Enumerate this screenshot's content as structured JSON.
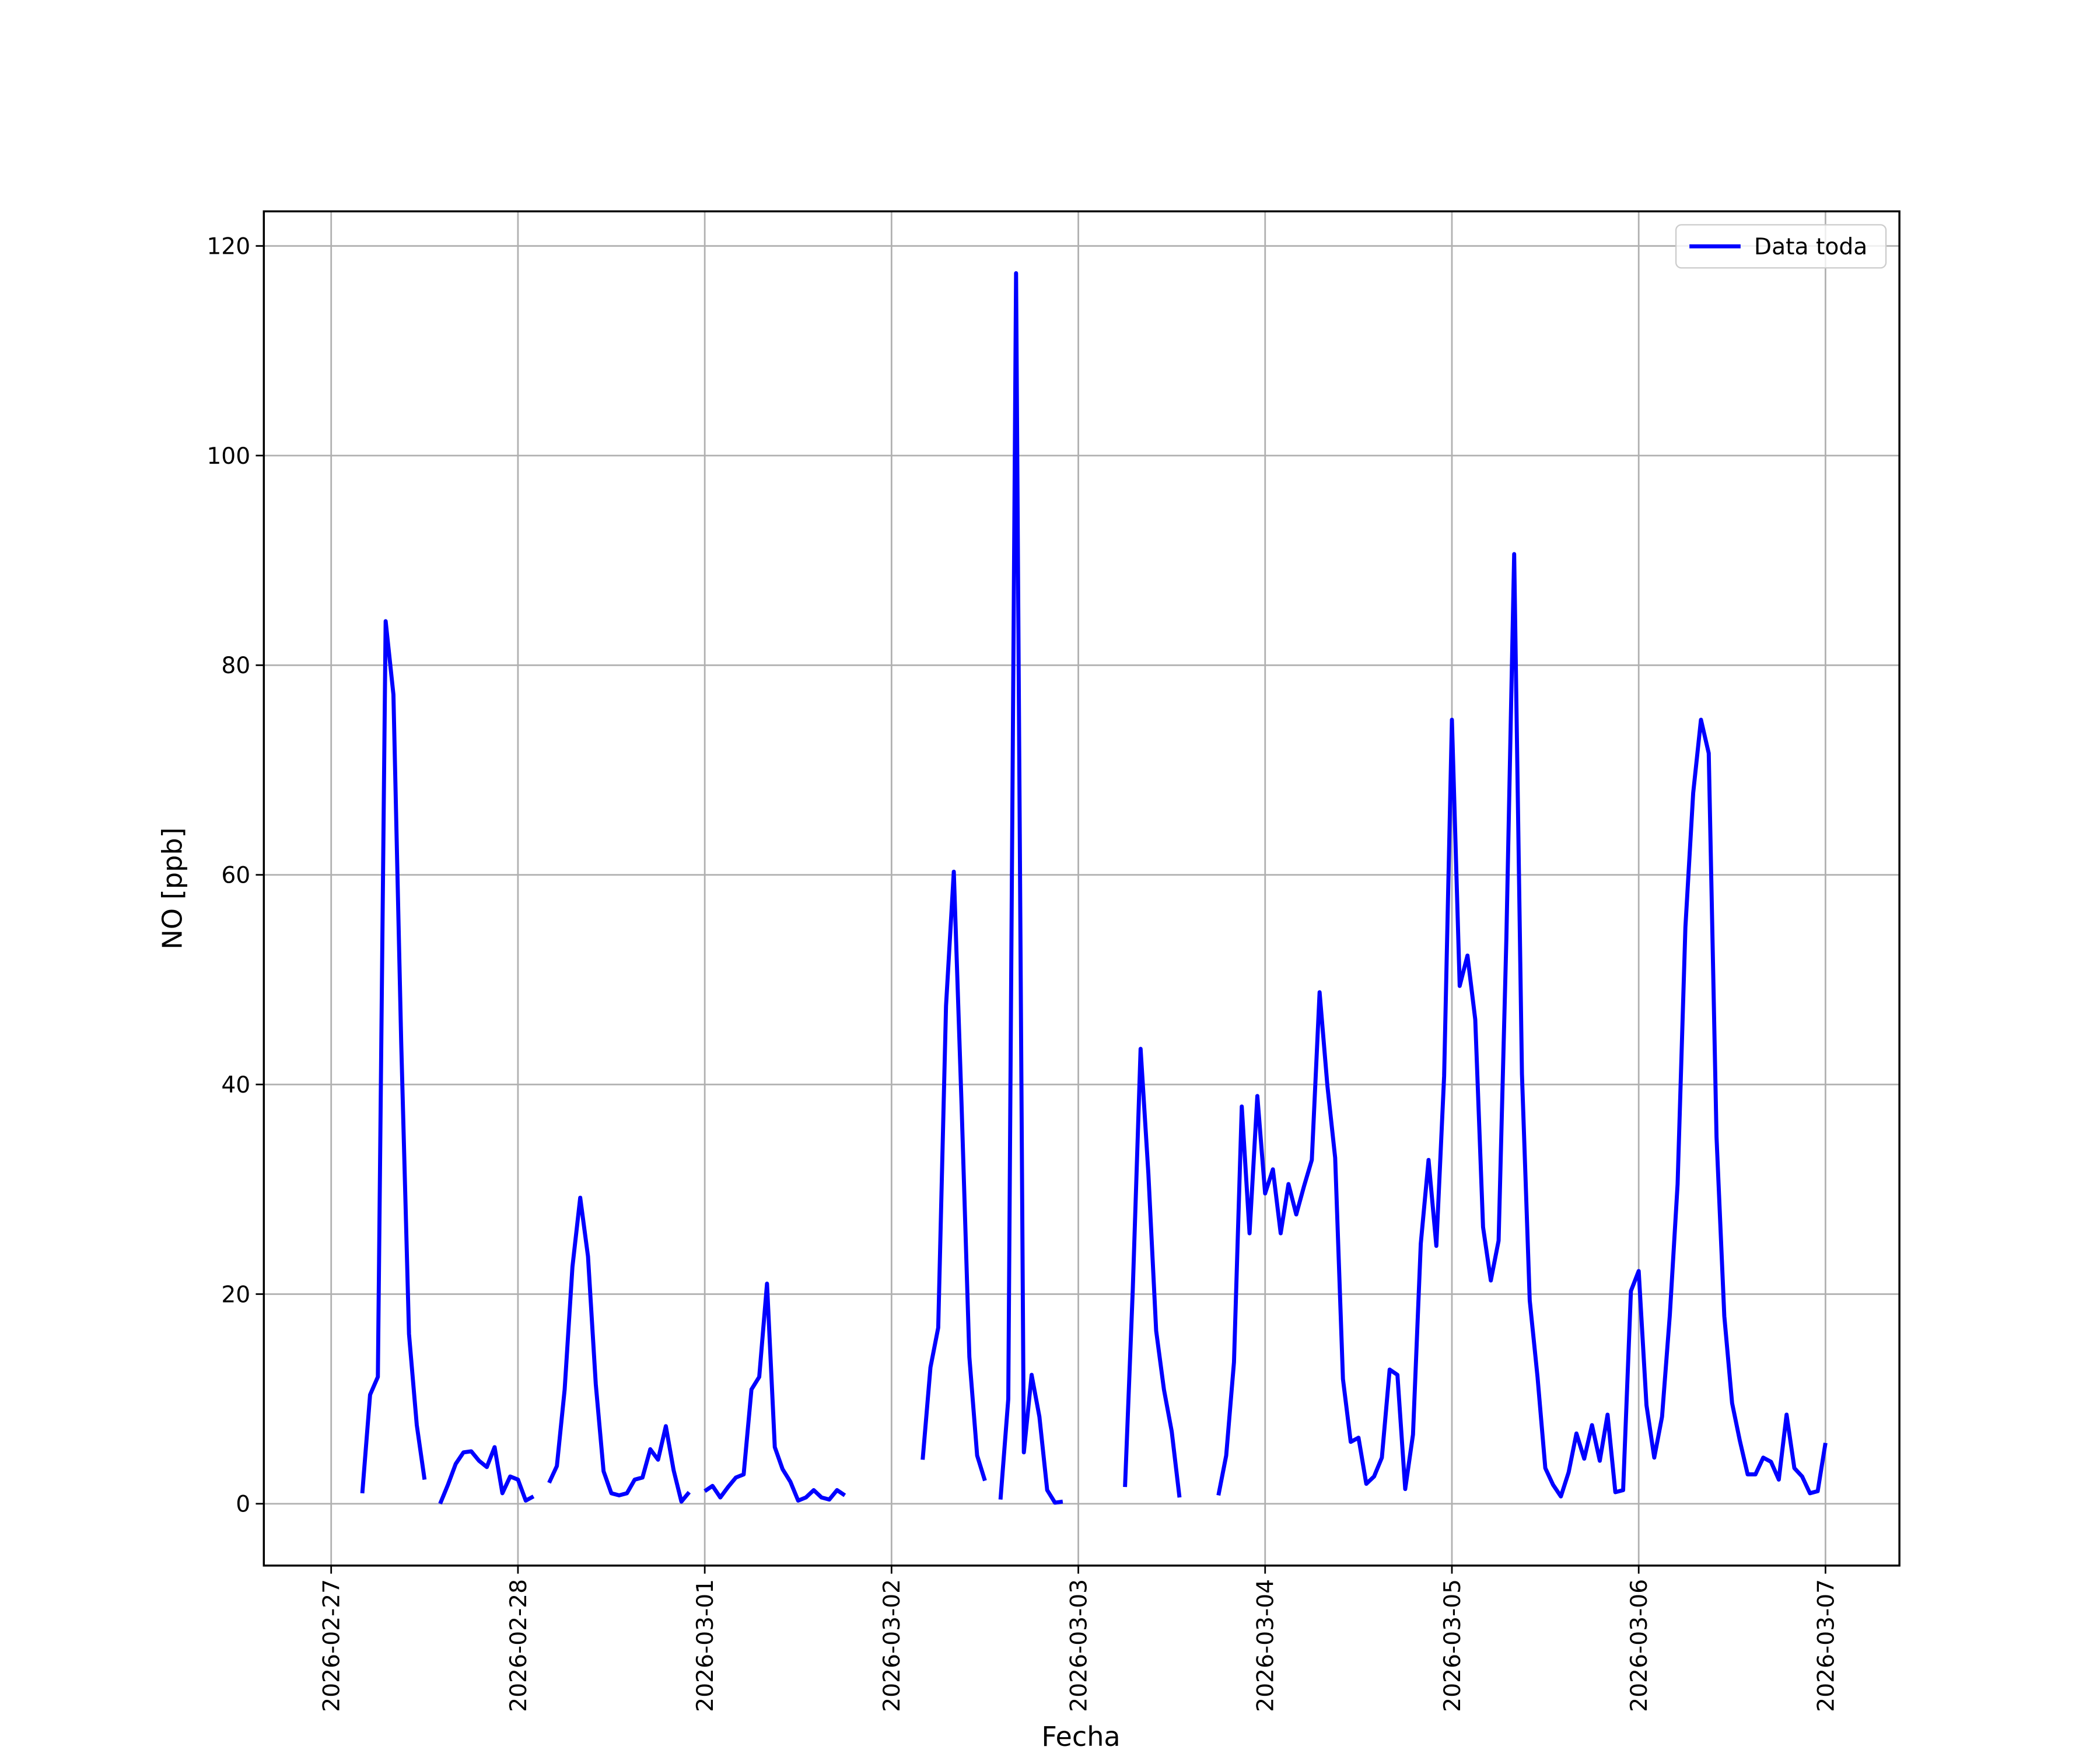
{
  "chart_data": {
    "type": "line",
    "xlabel": "Fecha",
    "ylabel": "NO [ppb]",
    "x": [
      "2026-02-27 04:00",
      "2026-02-27 05:00",
      "2026-02-27 06:00",
      "2026-02-27 07:00",
      "2026-02-27 08:00",
      "2026-02-27 09:00",
      "2026-02-27 10:00",
      "2026-02-27 11:00",
      "2026-02-27 12:00",
      "2026-02-27 13:00",
      "2026-02-27 14:00",
      "2026-02-27 15:00",
      "2026-02-27 16:00",
      "2026-02-27 17:00",
      "2026-02-27 18:00",
      "2026-02-27 19:00",
      "2026-02-27 20:00",
      "2026-02-27 21:00",
      "2026-02-27 22:00",
      "2026-02-27 23:00",
      "2026-02-28 00:00",
      "2026-02-28 01:00",
      "2026-02-28 02:00",
      "2026-02-28 03:00",
      "2026-02-28 04:00",
      "2026-02-28 05:00",
      "2026-02-28 06:00",
      "2026-02-28 07:00",
      "2026-02-28 08:00",
      "2026-02-28 09:00",
      "2026-02-28 10:00",
      "2026-02-28 11:00",
      "2026-02-28 12:00",
      "2026-02-28 13:00",
      "2026-02-28 14:00",
      "2026-02-28 15:00",
      "2026-02-28 16:00",
      "2026-02-28 17:00",
      "2026-02-28 18:00",
      "2026-02-28 19:00",
      "2026-02-28 20:00",
      "2026-02-28 21:00",
      "2026-02-28 22:00",
      "2026-02-28 23:00",
      "2026-03-01 00:00",
      "2026-03-01 01:00",
      "2026-03-01 02:00",
      "2026-03-01 03:00",
      "2026-03-01 04:00",
      "2026-03-01 05:00",
      "2026-03-01 06:00",
      "2026-03-01 07:00",
      "2026-03-01 08:00",
      "2026-03-01 09:00",
      "2026-03-01 10:00",
      "2026-03-01 11:00",
      "2026-03-01 12:00",
      "2026-03-01 13:00",
      "2026-03-01 14:00",
      "2026-03-01 15:00",
      "2026-03-01 16:00",
      "2026-03-01 17:00",
      "2026-03-01 18:00",
      "2026-03-01 19:00",
      "2026-03-02 04:00",
      "2026-03-02 05:00",
      "2026-03-02 06:00",
      "2026-03-02 07:00",
      "2026-03-02 08:00",
      "2026-03-02 09:00",
      "2026-03-02 10:00",
      "2026-03-02 11:00",
      "2026-03-02 12:00",
      "2026-03-02 13:00",
      "2026-03-02 14:00",
      "2026-03-02 15:00",
      "2026-03-02 16:00",
      "2026-03-02 17:00",
      "2026-03-02 18:00",
      "2026-03-02 19:00",
      "2026-03-02 20:00",
      "2026-03-02 21:00",
      "2026-03-02 22:00",
      "2026-03-02 23:00",
      "2026-03-03 06:00",
      "2026-03-03 07:00",
      "2026-03-03 08:00",
      "2026-03-03 09:00",
      "2026-03-03 10:00",
      "2026-03-03 11:00",
      "2026-03-03 12:00",
      "2026-03-03 13:00",
      "2026-03-03 14:00",
      "2026-03-03 18:00",
      "2026-03-03 19:00",
      "2026-03-03 20:00",
      "2026-03-03 21:00",
      "2026-03-03 22:00",
      "2026-03-03 23:00",
      "2026-03-04 00:00",
      "2026-03-04 01:00",
      "2026-03-04 02:00",
      "2026-03-04 03:00",
      "2026-03-04 04:00",
      "2026-03-04 05:00",
      "2026-03-04 06:00",
      "2026-03-04 07:00",
      "2026-03-04 08:00",
      "2026-03-04 09:00",
      "2026-03-04 10:00",
      "2026-03-04 11:00",
      "2026-03-04 12:00",
      "2026-03-04 13:00",
      "2026-03-04 14:00",
      "2026-03-04 15:00",
      "2026-03-04 16:00",
      "2026-03-04 17:00",
      "2026-03-04 18:00",
      "2026-03-04 19:00",
      "2026-03-04 20:00",
      "2026-03-04 21:00",
      "2026-03-04 22:00",
      "2026-03-04 23:00",
      "2026-03-05 00:00",
      "2026-03-05 01:00",
      "2026-03-05 02:00",
      "2026-03-05 03:00",
      "2026-03-05 04:00",
      "2026-03-05 05:00",
      "2026-03-05 06:00",
      "2026-03-05 07:00",
      "2026-03-05 08:00",
      "2026-03-05 09:00",
      "2026-03-05 10:00",
      "2026-03-05 11:00",
      "2026-03-05 12:00",
      "2026-03-05 13:00",
      "2026-03-05 14:00",
      "2026-03-05 15:00",
      "2026-03-05 16:00",
      "2026-03-05 17:00",
      "2026-03-05 18:00",
      "2026-03-05 19:00",
      "2026-03-05 20:00",
      "2026-03-05 21:00",
      "2026-03-05 22:00",
      "2026-03-05 23:00",
      "2026-03-06 00:00",
      "2026-03-06 01:00",
      "2026-03-06 02:00",
      "2026-03-06 03:00",
      "2026-03-06 04:00",
      "2026-03-06 05:00",
      "2026-03-06 06:00",
      "2026-03-06 07:00",
      "2026-03-06 08:00",
      "2026-03-06 09:00",
      "2026-03-06 10:00",
      "2026-03-06 11:00",
      "2026-03-06 12:00",
      "2026-03-06 13:00",
      "2026-03-06 14:00",
      "2026-03-06 15:00",
      "2026-03-06 16:00",
      "2026-03-06 17:00",
      "2026-03-06 18:00",
      "2026-03-06 19:00",
      "2026-03-06 20:00",
      "2026-03-06 21:00",
      "2026-03-06 22:00",
      "2026-03-06 23:00",
      "2026-03-07 00:00"
    ],
    "series": [
      {
        "name": "Data toda",
        "color": "#0000ff",
        "values": [
          1,
          10.4,
          12.1,
          84.2,
          77.2,
          44,
          16.2,
          7.5,
          2.3,
          null,
          0,
          1.8,
          3.8,
          4.9,
          5,
          4.1,
          3.5,
          5.4,
          1,
          2.6,
          2.3,
          0.3,
          0.7,
          null,
          2,
          3.6,
          10.9,
          22.6,
          29.2,
          23.6,
          11.4,
          3.1,
          1,
          0.8,
          1,
          2.3,
          2.5,
          5.2,
          4.2,
          7.4,
          3.2,
          0.2,
          1.1,
          null,
          1.2,
          1.7,
          0.6,
          1.6,
          2.5,
          2.8,
          10.9,
          12.1,
          21,
          5.4,
          3.3,
          2.1,
          0.3,
          0.6,
          1.3,
          0.6,
          0.4,
          1.3,
          0.8,
          null,
          4.2,
          13,
          16.8,
          47.5,
          60.3,
          38,
          14,
          4.6,
          2.2,
          null,
          0.4,
          10,
          117.4,
          4.9,
          12.3,
          8.3,
          1.3,
          0.1,
          0.2,
          null,
          1.6,
          20.5,
          43.4,
          31.5,
          16.5,
          10.9,
          6.9,
          0.6,
          null,
          0.8,
          4.6,
          13.5,
          37.9,
          25.8,
          38.9,
          29.6,
          31.9,
          25.8,
          30.5,
          27.6,
          30.3,
          32.8,
          48.8,
          39.9,
          33,
          11.9,
          5.9,
          6.3,
          1.9,
          2.6,
          4.4,
          12.8,
          12.3,
          1.4,
          6.6,
          24.8,
          32.8,
          24.6,
          40.8,
          74.8,
          49.4,
          52.3,
          46.2,
          26.4,
          21.3,
          25.1,
          54,
          90.6,
          41,
          19.4,
          12.1,
          3.4,
          1.8,
          0.7,
          3,
          6.7,
          4.3,
          7.5,
          4.1,
          8.5,
          1.1,
          1.3,
          20.3,
          22.2,
          9.4,
          4.4,
          8.3,
          18,
          30.5,
          55,
          67.8,
          74.8,
          71.6,
          35,
          17.9,
          9.6,
          6,
          2.8,
          2.8,
          4.4,
          4,
          2.3,
          8.5,
          3.4,
          2.6,
          1,
          1.2,
          5.8
        ]
      }
    ],
    "xlim": [
      "2026-02-26 15:21",
      "2026-03-07 09:30"
    ],
    "xticks": [
      "2026-02-27",
      "2026-02-28",
      "2026-03-01",
      "2026-03-02",
      "2026-03-03",
      "2026-03-04",
      "2026-03-05",
      "2026-03-06",
      "2026-03-07"
    ],
    "ylim": [
      -5.9,
      123.3
    ],
    "yticks": [
      0,
      20,
      40,
      60,
      80,
      100,
      120
    ],
    "grid": true,
    "legend": "upper right"
  }
}
